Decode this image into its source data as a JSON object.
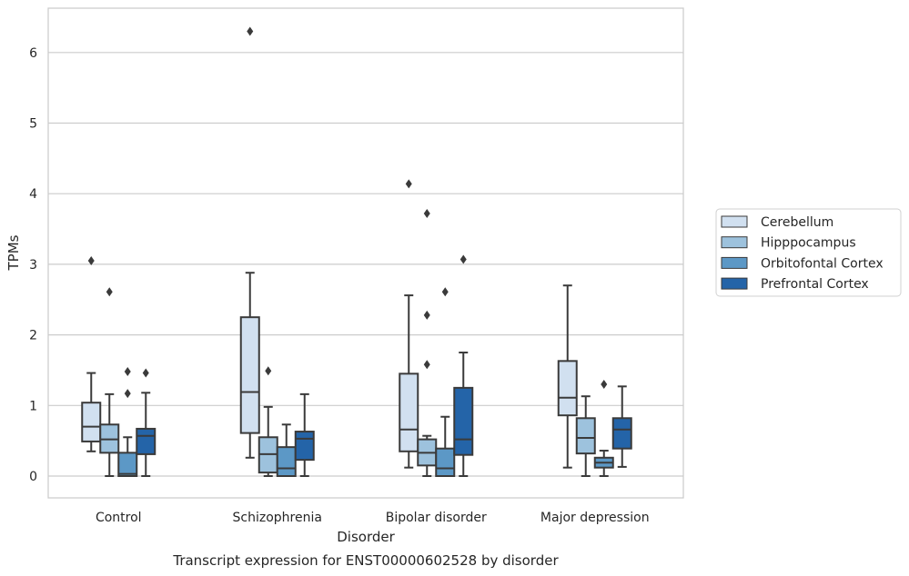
{
  "chart_data": {
    "type": "box",
    "caption": "Transcript expression for ENST00000602528 by disorder",
    "xlabel": "Disorder",
    "ylabel": "TPMs",
    "ylim": [
      -0.3,
      6.6
    ],
    "yticks": [
      0,
      1,
      2,
      3,
      4,
      5,
      6
    ],
    "grid": true,
    "legend_position": "right",
    "categories": [
      "Control",
      "Schizophrenia",
      "Bipolar disorder",
      "Major depression"
    ],
    "series": [
      {
        "name": "Cerebellum",
        "color": "#d1e0f0",
        "boxes": [
          {
            "whislo": 0.35,
            "q1": 0.49,
            "med": 0.7,
            "q3": 1.04,
            "whishi": 1.46,
            "fliers": [
              3.05
            ]
          },
          {
            "whislo": 0.26,
            "q1": 0.61,
            "med": 1.19,
            "q3": 2.25,
            "whishi": 2.88,
            "fliers": [
              6.3
            ]
          },
          {
            "whislo": 0.12,
            "q1": 0.35,
            "med": 0.66,
            "q3": 1.45,
            "whishi": 2.56,
            "fliers": [
              4.14
            ]
          },
          {
            "whislo": 0.12,
            "q1": 0.86,
            "med": 1.11,
            "q3": 1.63,
            "whishi": 2.7,
            "fliers": []
          }
        ]
      },
      {
        "name": "Hipppocampus",
        "color": "#9dc2dd",
        "boxes": [
          {
            "whislo": 0.0,
            "q1": 0.33,
            "med": 0.52,
            "q3": 0.73,
            "whishi": 1.16,
            "fliers": [
              2.61
            ]
          },
          {
            "whislo": 0.0,
            "q1": 0.05,
            "med": 0.31,
            "q3": 0.55,
            "whishi": 0.98,
            "fliers": [
              1.49
            ]
          },
          {
            "whislo": 0.0,
            "q1": 0.15,
            "med": 0.33,
            "q3": 0.52,
            "whishi": 0.57,
            "fliers": [
              1.58,
              2.28,
              3.72
            ]
          },
          {
            "whislo": 0.0,
            "q1": 0.32,
            "med": 0.54,
            "q3": 0.82,
            "whishi": 1.13,
            "fliers": []
          }
        ]
      },
      {
        "name": "Orbitofontal Cortex",
        "color": "#5c98c6",
        "boxes": [
          {
            "whislo": 0.0,
            "q1": 0.0,
            "med": 0.03,
            "q3": 0.33,
            "whishi": 0.55,
            "fliers": [
              1.17,
              1.48
            ]
          },
          {
            "whislo": 0.0,
            "q1": 0.0,
            "med": 0.11,
            "q3": 0.41,
            "whishi": 0.73,
            "fliers": []
          },
          {
            "whislo": 0.0,
            "q1": 0.0,
            "med": 0.11,
            "q3": 0.39,
            "whishi": 0.84,
            "fliers": [
              2.61
            ]
          },
          {
            "whislo": 0.0,
            "q1": 0.12,
            "med": 0.19,
            "q3": 0.26,
            "whishi": 0.36,
            "fliers": [
              1.3
            ]
          }
        ]
      },
      {
        "name": "Prefrontal Cortex",
        "color": "#2464a8",
        "boxes": [
          {
            "whislo": 0.0,
            "q1": 0.31,
            "med": 0.57,
            "q3": 0.67,
            "whishi": 1.18,
            "fliers": [
              1.46
            ]
          },
          {
            "whislo": 0.0,
            "q1": 0.23,
            "med": 0.53,
            "q3": 0.63,
            "whishi": 1.16,
            "fliers": []
          },
          {
            "whislo": 0.0,
            "q1": 0.3,
            "med": 0.52,
            "q3": 1.25,
            "whishi": 1.75,
            "fliers": [
              3.07
            ]
          },
          {
            "whislo": 0.13,
            "q1": 0.39,
            "med": 0.66,
            "q3": 0.82,
            "whishi": 1.27,
            "fliers": []
          }
        ]
      }
    ]
  }
}
